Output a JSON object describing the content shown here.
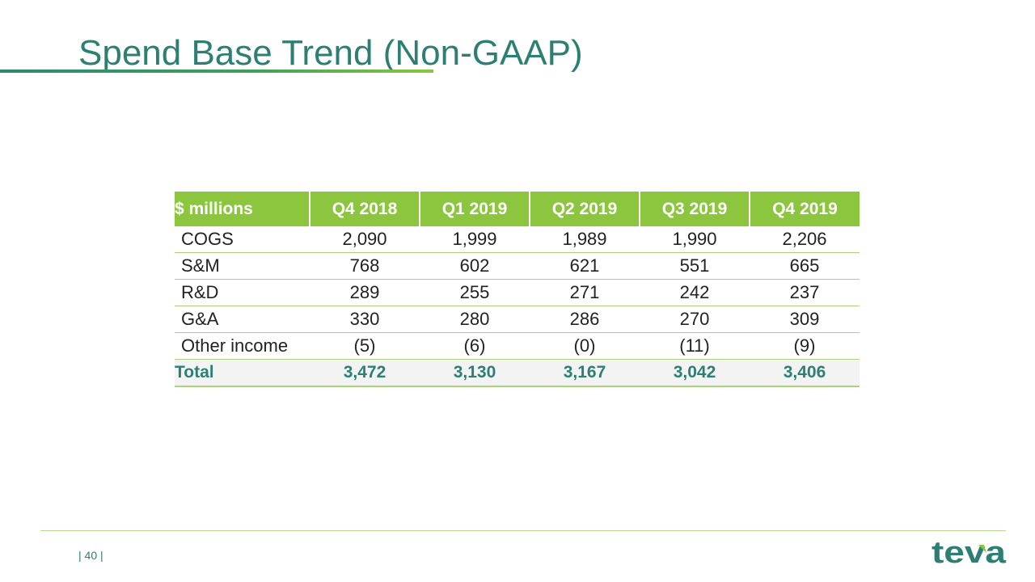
{
  "slide": {
    "title": "Spend Base Trend (Non-GAAP)",
    "page_number": "| 40 |"
  },
  "table": {
    "header": [
      "$ millions",
      "Q4 2018",
      "Q1 2019",
      "Q2 2019",
      "Q3 2019",
      "Q4 2019"
    ],
    "rows": [
      {
        "label": "COGS",
        "values": [
          "2,090",
          "1,999",
          "1,989",
          "1,990",
          "2,206"
        ]
      },
      {
        "label": "S&M",
        "values": [
          "768",
          "602",
          "621",
          "551",
          "665"
        ]
      },
      {
        "label": "R&D",
        "values": [
          "289",
          "255",
          "271",
          "242",
          "237"
        ]
      },
      {
        "label": "G&A",
        "values": [
          "330",
          "280",
          "286",
          "270",
          "309"
        ]
      },
      {
        "label": "Other income",
        "values": [
          "(5)",
          "(6)",
          "(0)",
          "(11)",
          "(9)"
        ]
      }
    ],
    "total": {
      "label": "Total",
      "values": [
        "3,472",
        "3,130",
        "3,167",
        "3,042",
        "3,406"
      ]
    }
  },
  "logo": {
    "text": "teva",
    "color": "#2e7f73",
    "accent": "#8cc63f"
  },
  "colors": {
    "title": "#2e7f73",
    "header_bg": "#8cc63f",
    "total_text": "#2e7f73"
  }
}
